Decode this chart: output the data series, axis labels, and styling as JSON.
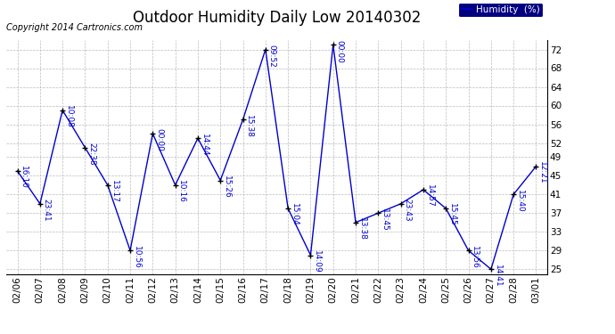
{
  "title": "Outdoor Humidity Daily Low 20140302",
  "copyright": "Copyright 2014 Cartronics.com",
  "legend_label": "Humidity  (%)",
  "background_color": "#ffffff",
  "plot_bg_color": "#ffffff",
  "grid_color": "#bbbbbb",
  "line_color": "#0000cc",
  "marker_color": "#000000",
  "label_color": "#0000cc",
  "legend_bg": "#000080",
  "legend_fg": "#ffffff",
  "ylim": [
    24,
    74
  ],
  "yticks": [
    25,
    29,
    33,
    37,
    41,
    45,
    49,
    52,
    56,
    60,
    64,
    68,
    72
  ],
  "dates": [
    "02/06",
    "02/07",
    "02/08",
    "02/09",
    "02/10",
    "02/11",
    "02/12",
    "02/13",
    "02/14",
    "02/15",
    "02/16",
    "02/17",
    "02/18",
    "02/19",
    "02/20",
    "02/21",
    "02/22",
    "02/23",
    "02/24",
    "02/25",
    "02/26",
    "02/27",
    "02/28",
    "03/01"
  ],
  "values": [
    46,
    39,
    59,
    51,
    43,
    29,
    54,
    43,
    53,
    44,
    57,
    72,
    38,
    28,
    73,
    35,
    37,
    39,
    42,
    38,
    29,
    25,
    41,
    47
  ],
  "time_labels": [
    "16:10",
    "23:41",
    "10:08",
    "22:38",
    "13:17",
    "10:56",
    "00:00",
    "10:16",
    "14:44",
    "15:26",
    "15:38",
    "09:52",
    "15:04",
    "14:09",
    "00:00",
    "13:38",
    "13:45",
    "23:43",
    "14:57",
    "15:45",
    "13:56",
    "14:41",
    "15:40",
    "12:21"
  ],
  "title_fontsize": 12,
  "label_fontsize": 6.5,
  "tick_fontsize": 7.5,
  "copyright_fontsize": 7
}
